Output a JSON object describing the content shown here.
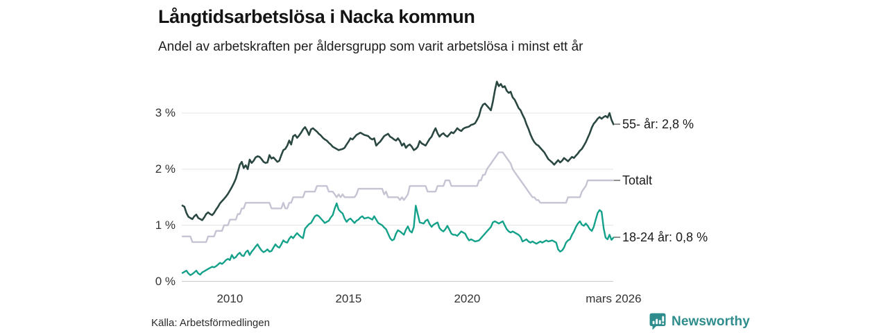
{
  "header": {
    "title": "Långtidsarbetslösa i Nacka kommun",
    "subtitle": "Andel av arbetskraften per åldersgrupp som varit arbetslösa i minst ett år"
  },
  "footer": {
    "source": "Källa: Arbetsförmedlingen",
    "brand": "Newsworthy",
    "brand_color": "#2e8c8c"
  },
  "chart_data": {
    "type": "line",
    "title": "Långtidsarbetslösa i Nacka kommun",
    "subtitle": "Andel av arbetskraften per åldersgrupp som varit arbetslösa i minst ett år",
    "unit": "%",
    "grid": true,
    "x_range": [
      2008.0,
      2026.17
    ],
    "ylim": [
      0,
      3.6
    ],
    "x_start": 2008.0,
    "x_step_years": 0.0833333,
    "x_axis": {
      "ticks": [
        {
          "x": 2010,
          "label": "2010"
        },
        {
          "x": 2015,
          "label": "2015"
        },
        {
          "x": 2020,
          "label": "2020"
        },
        {
          "x": 2026.17,
          "label": "mars 2026"
        }
      ]
    },
    "y_axis": {
      "ticks": [
        {
          "v": 3,
          "label": "3 %"
        },
        {
          "v": 2,
          "label": "2 %"
        },
        {
          "v": 1,
          "label": "1 %"
        },
        {
          "v": 0,
          "label": "0 %"
        }
      ]
    },
    "legend_position": "right-of-line-ends",
    "series": [
      {
        "name": "55- år",
        "slug": "55-ar",
        "color": "#2b4742",
        "stroke_width": 2.6,
        "end_label": "55- år: 2,8 %",
        "end_value": 2.8,
        "values": [
          1.35,
          1.33,
          1.22,
          1.15,
          1.13,
          1.11,
          1.16,
          1.19,
          1.13,
          1.11,
          1.09,
          1.14,
          1.2,
          1.23,
          1.2,
          1.18,
          1.22,
          1.28,
          1.33,
          1.39,
          1.43,
          1.47,
          1.51,
          1.56,
          1.62,
          1.68,
          1.75,
          1.83,
          1.95,
          2.08,
          2.13,
          2.02,
          2.07,
          2.0,
          2.17,
          2.11,
          2.15,
          2.21,
          2.23,
          2.22,
          2.18,
          2.13,
          2.11,
          2.12,
          2.25,
          2.19,
          2.21,
          2.17,
          2.13,
          2.15,
          2.25,
          2.34,
          2.36,
          2.42,
          2.51,
          2.44,
          2.59,
          2.61,
          2.56,
          2.6,
          2.65,
          2.71,
          2.75,
          2.69,
          2.61,
          2.71,
          2.73,
          2.7,
          2.67,
          2.63,
          2.6,
          2.56,
          2.53,
          2.51,
          2.47,
          2.44,
          2.4,
          2.38,
          2.36,
          2.34,
          2.35,
          2.36,
          2.38,
          2.44,
          2.49,
          2.55,
          2.53,
          2.57,
          2.61,
          2.63,
          2.65,
          2.63,
          2.61,
          2.6,
          2.59,
          2.55,
          2.53,
          2.55,
          2.42,
          2.46,
          2.49,
          2.54,
          2.59,
          2.61,
          2.63,
          2.58,
          2.56,
          2.53,
          2.51,
          2.55,
          2.5,
          2.42,
          2.46,
          2.38,
          2.42,
          2.44,
          2.4,
          2.34,
          2.36,
          2.4,
          2.5,
          2.46,
          2.44,
          2.42,
          2.48,
          2.54,
          2.58,
          2.66,
          2.73,
          2.64,
          2.58,
          2.62,
          2.64,
          2.6,
          2.58,
          2.62,
          2.66,
          2.64,
          2.68,
          2.73,
          2.7,
          2.68,
          2.72,
          2.74,
          2.75,
          2.76,
          2.79,
          2.8,
          2.82,
          2.88,
          2.95,
          3.08,
          3.15,
          3.17,
          3.13,
          3.09,
          3.05,
          3.2,
          3.4,
          3.56,
          3.48,
          3.52,
          3.46,
          3.48,
          3.4,
          3.36,
          3.38,
          3.28,
          3.24,
          3.17,
          3.09,
          3.05,
          2.97,
          2.9,
          2.8,
          2.72,
          2.62,
          2.54,
          2.48,
          2.44,
          2.42,
          2.38,
          2.34,
          2.3,
          2.24,
          2.18,
          2.15,
          2.12,
          2.08,
          2.12,
          2.16,
          2.12,
          2.15,
          2.2,
          2.17,
          2.14,
          2.18,
          2.22,
          2.2,
          2.24,
          2.28,
          2.33,
          2.36,
          2.42,
          2.48,
          2.56,
          2.64,
          2.74,
          2.81,
          2.85,
          2.9,
          2.93,
          2.9,
          2.93,
          2.95,
          2.92,
          3.0,
          2.88,
          2.8
        ]
      },
      {
        "name": "Totalt",
        "slug": "totalt",
        "color": "#c6c3d3",
        "stroke_width": 2.4,
        "end_label": "Totalt",
        "end_value": 1.8,
        "values": [
          0.8,
          0.8,
          0.8,
          0.8,
          0.8,
          0.7,
          0.7,
          0.7,
          0.7,
          0.7,
          0.7,
          0.7,
          0.7,
          0.8,
          0.8,
          0.8,
          0.8,
          0.9,
          0.9,
          0.9,
          0.9,
          1.0,
          1.0,
          1.0,
          1.1,
          1.1,
          1.1,
          1.1,
          1.2,
          1.2,
          1.3,
          1.3,
          1.4,
          1.4,
          1.4,
          1.4,
          1.4,
          1.4,
          1.4,
          1.4,
          1.4,
          1.4,
          1.4,
          1.4,
          1.4,
          1.3,
          1.3,
          1.3,
          1.3,
          1.3,
          1.3,
          1.4,
          1.3,
          1.3,
          1.4,
          1.4,
          1.5,
          1.5,
          1.5,
          1.5,
          1.5,
          1.5,
          1.6,
          1.6,
          1.6,
          1.6,
          1.6,
          1.6,
          1.7,
          1.7,
          1.7,
          1.7,
          1.7,
          1.7,
          1.6,
          1.6,
          1.6,
          1.55,
          1.5,
          1.55,
          1.5,
          1.55,
          1.5,
          1.5,
          1.5,
          1.5,
          1.5,
          1.5,
          1.55,
          1.65,
          1.65,
          1.65,
          1.65,
          1.65,
          1.65,
          1.65,
          1.65,
          1.65,
          1.65,
          1.65,
          1.65,
          1.65,
          1.55,
          1.6,
          1.5,
          1.5,
          1.5,
          1.5,
          1.5,
          1.5,
          1.45,
          1.5,
          1.45,
          1.5,
          1.55,
          1.7,
          1.7,
          1.7,
          1.7,
          1.7,
          1.7,
          1.7,
          1.7,
          1.7,
          1.6,
          1.6,
          1.6,
          1.6,
          1.6,
          1.7,
          1.7,
          1.7,
          1.7,
          1.8,
          1.8,
          1.8,
          1.7,
          1.7,
          1.7,
          1.7,
          1.7,
          1.7,
          1.7,
          1.7,
          1.7,
          1.7,
          1.7,
          1.7,
          1.7,
          1.7,
          1.8,
          1.8,
          1.9,
          1.9,
          2.0,
          2.05,
          2.1,
          2.15,
          2.2,
          2.25,
          2.3,
          2.3,
          2.3,
          2.25,
          2.2,
          2.15,
          2.1,
          2.0,
          1.95,
          1.9,
          1.85,
          1.8,
          1.75,
          1.7,
          1.65,
          1.6,
          1.55,
          1.5,
          1.5,
          1.45,
          1.45,
          1.4,
          1.4,
          1.4,
          1.4,
          1.4,
          1.4,
          1.4,
          1.4,
          1.4,
          1.4,
          1.4,
          1.4,
          1.4,
          1.4,
          1.5,
          1.5,
          1.5,
          1.5,
          1.5,
          1.5,
          1.5,
          1.6,
          1.65,
          1.7,
          1.8,
          1.8,
          1.8,
          1.8,
          1.8,
          1.8,
          1.8,
          1.8,
          1.8,
          1.8,
          1.8,
          1.8,
          1.8,
          1.8
        ]
      },
      {
        "name": "18-24 år",
        "slug": "18-24-ar",
        "color": "#13a18a",
        "stroke_width": 2.4,
        "end_label": "18-24 år: 0,8 %",
        "end_value": 0.8,
        "values": [
          0.15,
          0.17,
          0.19,
          0.14,
          0.11,
          0.13,
          0.16,
          0.19,
          0.14,
          0.12,
          0.16,
          0.18,
          0.2,
          0.22,
          0.24,
          0.26,
          0.25,
          0.27,
          0.3,
          0.33,
          0.31,
          0.34,
          0.38,
          0.4,
          0.38,
          0.47,
          0.41,
          0.43,
          0.48,
          0.51,
          0.46,
          0.45,
          0.52,
          0.55,
          0.47,
          0.53,
          0.57,
          0.62,
          0.66,
          0.6,
          0.55,
          0.52,
          0.54,
          0.57,
          0.53,
          0.54,
          0.6,
          0.66,
          0.62,
          0.6,
          0.66,
          0.73,
          0.7,
          0.69,
          0.76,
          0.8,
          0.77,
          0.82,
          0.86,
          0.82,
          0.79,
          0.77,
          0.94,
          0.98,
          1.02,
          1.04,
          1.1,
          1.16,
          1.18,
          1.16,
          1.12,
          1.08,
          1.04,
          1.06,
          1.08,
          1.14,
          1.18,
          1.3,
          1.39,
          1.28,
          1.24,
          1.21,
          1.12,
          1.06,
          1.1,
          1.12,
          1.08,
          1.04,
          1.08,
          1.1,
          1.14,
          1.16,
          1.12,
          1.13,
          1.14,
          1.12,
          1.1,
          1.16,
          1.1,
          1.04,
          1.02,
          1.0,
          0.96,
          0.93,
          0.85,
          0.77,
          0.73,
          0.75,
          0.85,
          0.91,
          0.89,
          0.86,
          0.83,
          0.92,
          0.98,
          0.9,
          0.87,
          0.97,
          1.35,
          1.2,
          1.05,
          1.04,
          1.03,
          1.08,
          1.1,
          1.02,
          0.97,
          1.01,
          1.03,
          1.05,
          0.95,
          0.91,
          0.89,
          0.93,
          0.99,
          0.92,
          0.85,
          0.83,
          0.83,
          0.81,
          0.85,
          0.89,
          0.87,
          0.85,
          0.78,
          0.73,
          0.75,
          0.73,
          0.71,
          0.72,
          0.73,
          0.77,
          0.81,
          0.85,
          0.89,
          0.93,
          0.97,
          1.05,
          1.07,
          1.05,
          1.03,
          1.05,
          1.07,
          1.0,
          0.93,
          0.89,
          0.87,
          0.89,
          0.87,
          0.85,
          0.83,
          0.79,
          0.71,
          0.73,
          0.75,
          0.71,
          0.69,
          0.71,
          0.69,
          0.67,
          0.69,
          0.71,
          0.69,
          0.71,
          0.73,
          0.71,
          0.72,
          0.73,
          0.71,
          0.69,
          0.57,
          0.53,
          0.55,
          0.6,
          0.69,
          0.73,
          0.75,
          0.83,
          0.89,
          0.97,
          1.03,
          1.07,
          1.01,
          0.99,
          1.03,
          0.99,
          0.93,
          0.9,
          0.97,
          1.1,
          1.22,
          1.27,
          1.24,
          0.95,
          0.78,
          0.75,
          0.83,
          0.74,
          0.78
        ]
      }
    ]
  }
}
